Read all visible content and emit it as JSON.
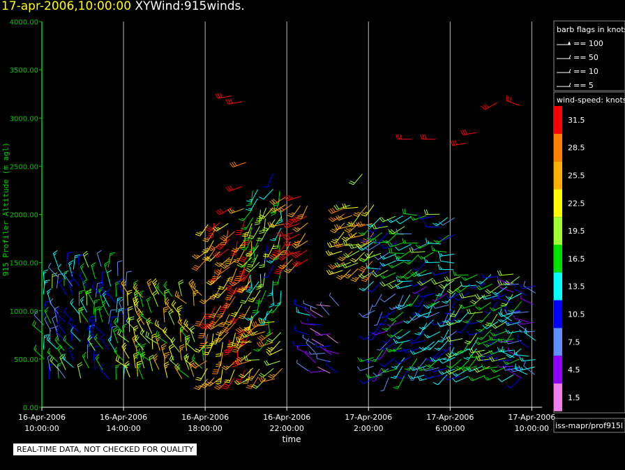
{
  "header": {
    "date": "17-apr-2006,10:00:00",
    "name": "XYWind:915winds."
  },
  "notice": "REAL-TIME DATA, NOT CHECKED FOR QUALITY",
  "source_label": "iss-mapr/prof915l",
  "colors": {
    "background": "#000000",
    "axis": "#00cc00",
    "grid": "#bbbbbb",
    "title_date": "#ffff00"
  },
  "chart_data": {
    "type": "wind-barb",
    "title": "17-apr-2006,10:00:00  XYWind:915winds.",
    "xlabel": "time",
    "ylabel": "915 Profiler Altitude (m agl)",
    "ylim": [
      0,
      4000
    ],
    "yticks": [
      "0.00",
      "500.00",
      "1000.00",
      "1500.00",
      "2000.00",
      "2500.00",
      "3000.00",
      "3500.00",
      "4000.00"
    ],
    "xticks": [
      {
        "date": "16-Apr-2006",
        "time": "10:00:00"
      },
      {
        "date": "16-Apr-2006",
        "time": "14:00:00"
      },
      {
        "date": "16-Apr-2006",
        "time": "18:00:00"
      },
      {
        "date": "16-Apr-2006",
        "time": "22:00:00"
      },
      {
        "date": "17-Apr-2006",
        "time": "2:00:00"
      },
      {
        "date": "17-Apr-2006",
        "time": "6:00:00"
      },
      {
        "date": "17-Apr-2006",
        "time": "10:00:00"
      }
    ],
    "xlim_hours": [
      0,
      24.5
    ],
    "grid": "vertical",
    "barb_legend": {
      "title": "barb flags in knots",
      "entries": [
        "== 100",
        "== 50",
        "== 10",
        "== 5"
      ]
    },
    "color_legend": {
      "title": "wind-speed: knots",
      "levels": [
        {
          "label": "31.5",
          "color": "#ff0000"
        },
        {
          "label": "28.5",
          "color": "#ff8000"
        },
        {
          "label": "25.5",
          "color": "#ffb000"
        },
        {
          "label": "22.5",
          "color": "#ffff00"
        },
        {
          "label": "19.5",
          "color": "#a0ff30"
        },
        {
          "label": "16.5",
          "color": "#00e000"
        },
        {
          "label": "13.5",
          "color": "#00ffff"
        },
        {
          "label": "10.5",
          "color": "#0000ff"
        },
        {
          "label": "7.5",
          "color": "#6090ff"
        },
        {
          "label": "4.5",
          "color": "#9000ff"
        },
        {
          "label": "1.5",
          "color": "#ee80ee"
        }
      ]
    },
    "segments": [
      {
        "t0": 0.0,
        "t1": 4.2,
        "hmin": 280,
        "hmax": 1450,
        "speed": 13,
        "dir": 340
      },
      {
        "t0": 4.2,
        "t1": 7.9,
        "hmin": 280,
        "hmax": 1200,
        "speed": 21,
        "dir": 330
      },
      {
        "t0": 8.0,
        "t1": 10.2,
        "hmin": 280,
        "hmax": 1900,
        "speed": 27,
        "dir": 210
      },
      {
        "t0": 10.2,
        "t1": 11.8,
        "hmin": 280,
        "hmax": 900,
        "speed": 23,
        "dir": 240
      },
      {
        "t0": 10.2,
        "t1": 11.8,
        "hmin": 900,
        "hmax": 2300,
        "speed": 17,
        "dir": 200
      },
      {
        "t0": 11.8,
        "t1": 13.0,
        "hmin": 1500,
        "hmax": 2200,
        "speed": 31,
        "dir": 230
      },
      {
        "t0": 13.0,
        "t1": 14.7,
        "hmin": 350,
        "hmax": 1100,
        "speed": 7,
        "dir": 290
      },
      {
        "t0": 14.7,
        "t1": 16.2,
        "hmin": 1400,
        "hmax": 2100,
        "speed": 24,
        "dir": 240
      },
      {
        "t0": 16.2,
        "t1": 20.5,
        "hmin": 300,
        "hmax": 1300,
        "speed": 11,
        "dir": 230
      },
      {
        "t0": 16.2,
        "t1": 20.5,
        "hmin": 1300,
        "hmax": 2000,
        "speed": 14,
        "dir": 250
      },
      {
        "t0": 20.5,
        "t1": 23.5,
        "hmin": 300,
        "hmax": 1400,
        "speed": 15,
        "dir": 240
      },
      {
        "t0": 23.0,
        "t1": 24.4,
        "hmin": 300,
        "hmax": 1300,
        "speed": 9,
        "dir": 280
      }
    ],
    "upper_barbs": [
      {
        "t": 9.3,
        "h": 3230,
        "speed": 31,
        "dir": 260
      },
      {
        "t": 9.8,
        "h": 3170,
        "speed": 30,
        "dir": 260
      },
      {
        "t": 10.0,
        "h": 2540,
        "speed": 29,
        "dir": 250
      },
      {
        "t": 9.8,
        "h": 2290,
        "speed": 31,
        "dir": 250
      },
      {
        "t": 9.3,
        "h": 2070,
        "speed": 31,
        "dir": 240
      },
      {
        "t": 9.9,
        "h": 2060,
        "speed": 24,
        "dir": 250
      },
      {
        "t": 11.3,
        "h": 2420,
        "speed": 10,
        "dir": 200
      },
      {
        "t": 15.7,
        "h": 2420,
        "speed": 18,
        "dir": 220
      },
      {
        "t": 18.1,
        "h": 2780,
        "speed": 31,
        "dir": 270
      },
      {
        "t": 19.3,
        "h": 2780,
        "speed": 31,
        "dir": 270
      },
      {
        "t": 20.8,
        "h": 2740,
        "speed": 31,
        "dir": 260
      },
      {
        "t": 21.3,
        "h": 2850,
        "speed": 31,
        "dir": 260
      },
      {
        "t": 22.3,
        "h": 3160,
        "speed": 31,
        "dir": 240
      },
      {
        "t": 23.4,
        "h": 3130,
        "speed": 31,
        "dir": 290
      }
    ]
  }
}
